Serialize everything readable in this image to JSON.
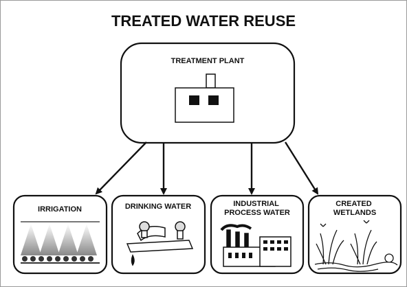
{
  "title": "TREATED WATER REUSE",
  "source": {
    "label": "TREATMENT PLANT"
  },
  "uses": [
    {
      "lines": [
        "IRRIGATION"
      ]
    },
    {
      "lines": [
        "DRINKING WATER"
      ]
    },
    {
      "lines": [
        "INDUSTRIAL",
        "PROCESS WATER"
      ]
    },
    {
      "lines": [
        "CREATED",
        "WETLANDS"
      ]
    }
  ]
}
